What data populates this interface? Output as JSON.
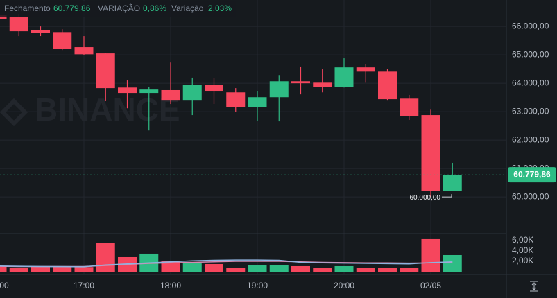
{
  "header": {
    "close_label": "Fechamento",
    "close_value": "60.779,86",
    "change_label": "VARIAÇÃO",
    "change_value": "0,86%",
    "variation_label": "Variação",
    "variation_value": "2,03%"
  },
  "watermark": "BINANCE",
  "chart_data": [
    {
      "type": "candlestick",
      "categories": [
        "00",
        null,
        null,
        null,
        "17:00",
        null,
        null,
        null,
        "18:00",
        null,
        null,
        null,
        "19:00",
        null,
        null,
        null,
        "20:00",
        null,
        null,
        null,
        "02/05",
        null
      ],
      "open": [
        66390,
        66320,
        65880,
        65800,
        65270,
        65050,
        63850,
        63660,
        63760,
        63390,
        63950,
        63680,
        63170,
        63510,
        64070,
        64020,
        63880,
        64560,
        64410,
        63460,
        62880,
        60220
      ],
      "high": [
        66450,
        66440,
        66000,
        65900,
        65660,
        65050,
        64100,
        63880,
        64730,
        64200,
        64200,
        63830,
        63730,
        64290,
        64590,
        64490,
        64880,
        64680,
        64510,
        63590,
        63070,
        61200
      ],
      "low": [
        66200,
        65660,
        65660,
        65170,
        64980,
        63370,
        63120,
        62340,
        63270,
        62880,
        63270,
        62980,
        62680,
        62660,
        63610,
        63680,
        63850,
        64020,
        63390,
        62710,
        60000,
        60200
      ],
      "close": [
        66270,
        65830,
        65780,
        65220,
        65020,
        63830,
        63660,
        63780,
        63390,
        63950,
        63710,
        63150,
        63510,
        64070,
        64000,
        63880,
        64560,
        64410,
        63440,
        62850,
        60220,
        60779.86
      ],
      "last_price_label": "60.779,86",
      "low_marker_label": "60.000,00",
      "up_color": "#2ebd85",
      "down_color": "#f6465d",
      "ylim": [
        58760,
        66930
      ],
      "yticks": [
        {
          "value": 60000,
          "label": "60.000,00"
        },
        {
          "value": 61000,
          "label": "61.000,00"
        },
        {
          "value": 62000,
          "label": "62.000,00"
        },
        {
          "value": 63000,
          "label": "63.000,00"
        },
        {
          "value": 64000,
          "label": "64.000,00"
        },
        {
          "value": 65000,
          "label": "65.000,00"
        },
        {
          "value": 66000,
          "label": "66.000,00"
        }
      ],
      "grid": true
    },
    {
      "type": "bar",
      "values": [
        1070,
        800,
        930,
        930,
        900,
        5470,
        2800,
        3470,
        2000,
        1730,
        1470,
        800,
        1330,
        1200,
        1070,
        800,
        1070,
        670,
        800,
        800,
        6270,
        3200
      ],
      "lines": [
        {
          "color": "#d48bb1",
          "values": [
            1050,
            1000,
            1000,
            1000,
            1000,
            1200,
            1400,
            1600,
            1700,
            1800,
            1900,
            2000,
            2000,
            2000,
            1900,
            1800,
            1750,
            1700,
            1700,
            1650,
            1700,
            1800
          ]
        },
        {
          "color": "#8fb3e0",
          "values": [
            1100,
            1050,
            1000,
            980,
            950,
            1300,
            1500,
            1700,
            1900,
            2100,
            2200,
            2250,
            2250,
            2200,
            1800,
            1700,
            1650,
            1600,
            1550,
            1500,
            1750,
            1900
          ]
        }
      ],
      "ylim": [
        0,
        7330
      ],
      "yticks": [
        {
          "value": 2000,
          "label": "2,00K"
        },
        {
          "value": 4000,
          "label": "4,00K"
        },
        {
          "value": 6000,
          "label": "6,00K"
        }
      ]
    }
  ]
}
